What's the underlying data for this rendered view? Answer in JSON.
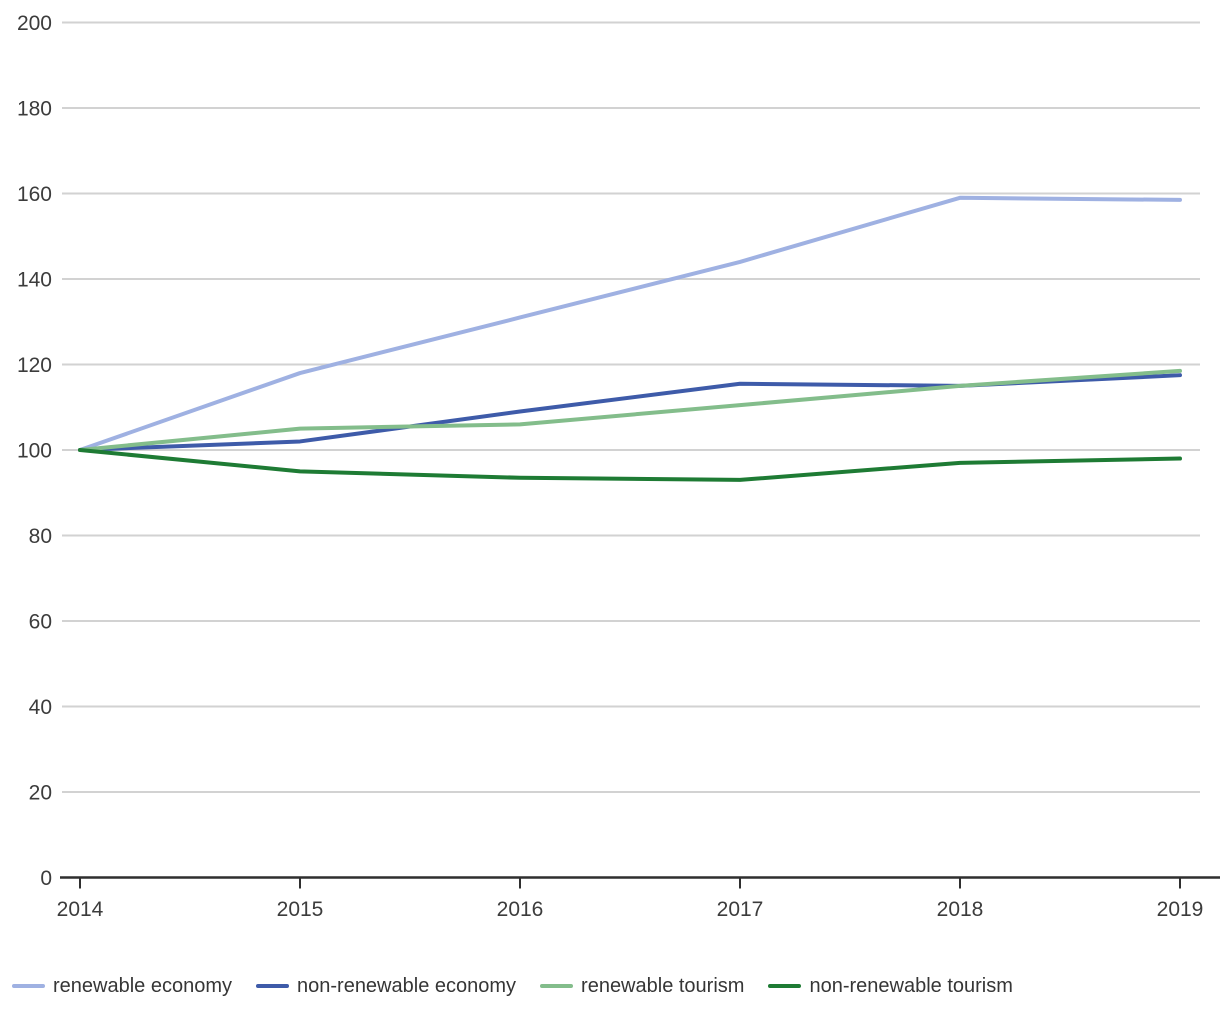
{
  "chart_data": {
    "type": "line",
    "x": [
      2014,
      2015,
      2016,
      2017,
      2018,
      2019
    ],
    "x_tick_labels": [
      "2014",
      "2015",
      "2016",
      "2017",
      "2018",
      "2019"
    ],
    "series": [
      {
        "name": "renewable economy",
        "color": "#9FB1E2",
        "values": [
          100,
          118,
          131,
          144,
          159,
          158.5
        ]
      },
      {
        "name": "non-renewable economy",
        "color": "#3E5BA9",
        "values": [
          100,
          102,
          109,
          115.5,
          115,
          117.5
        ]
      },
      {
        "name": "renewable tourism",
        "color": "#83BD8B",
        "values": [
          100,
          105,
          106,
          110.5,
          115,
          118.5
        ]
      },
      {
        "name": "non-renewable tourism",
        "color": "#1E7B34",
        "values": [
          100,
          95,
          93.5,
          93,
          97,
          98
        ]
      }
    ],
    "ylim": [
      0,
      200
    ],
    "yticks": [
      0,
      20,
      40,
      60,
      80,
      100,
      120,
      140,
      160,
      180,
      200
    ],
    "grid": "horizontal",
    "grid_color": "#d2d2d2",
    "axis_color": "#2f2f2f",
    "tick_label_color": "#3c3c3c",
    "line_width": 4,
    "legend_position": "bottom-left",
    "title": ""
  }
}
